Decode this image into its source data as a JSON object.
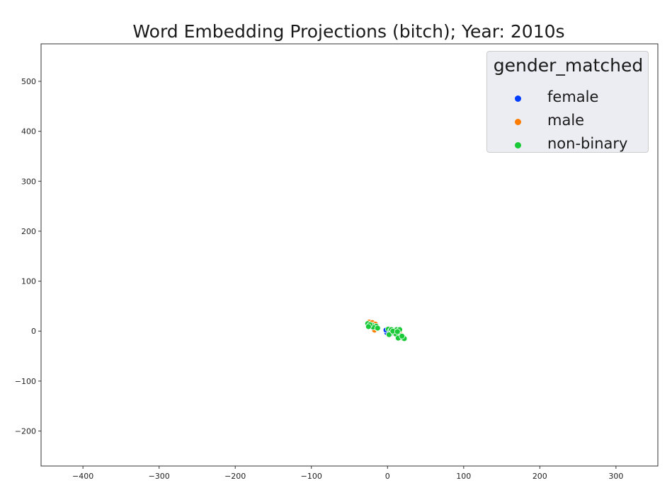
{
  "chart_data": {
    "type": "scatter",
    "title": "Word Embedding Projections (bitch); Year: 2010s",
    "xlabel": "",
    "ylabel": "",
    "xlim": [
      -455,
      355
    ],
    "ylim": [
      -270,
      575
    ],
    "xticks": [
      -400,
      -300,
      -200,
      -100,
      0,
      100,
      200,
      300
    ],
    "yticks": [
      -200,
      -100,
      0,
      100,
      200,
      300,
      400,
      500
    ],
    "xtick_labels": [
      "−400",
      "−300",
      "−200",
      "−100",
      "0",
      "100",
      "200",
      "300"
    ],
    "ytick_labels": [
      "−200",
      "−100",
      "0",
      "100",
      "200",
      "300",
      "400",
      "500"
    ],
    "grid": false,
    "legend": {
      "title": "gender_matched",
      "placement": "top-right",
      "entries": [
        {
          "label": "female",
          "color": "#023eff"
        },
        {
          "label": "male",
          "color": "#ff7c00"
        },
        {
          "label": "non-binary",
          "color": "#1ac938"
        }
      ]
    },
    "series": [
      {
        "name": "female",
        "color": "#023eff",
        "points": [
          [
            -1,
            -3
          ],
          [
            2,
            -1
          ],
          [
            4,
            -6
          ],
          [
            -2,
            2
          ]
        ]
      },
      {
        "name": "male",
        "color": "#ff7c00",
        "points": [
          [
            -24,
            18
          ],
          [
            -20,
            17
          ],
          [
            -16,
            14
          ],
          [
            -18,
            10
          ],
          [
            -14,
            8
          ],
          [
            -22,
            12
          ],
          [
            -17,
            2
          ],
          [
            -13,
            5
          ],
          [
            8,
            3
          ],
          [
            12,
            1
          ],
          [
            16,
            -4
          ],
          [
            18,
            -9
          ],
          [
            6,
            -1
          ],
          [
            14,
            -12
          ],
          [
            3,
            4
          ]
        ]
      },
      {
        "name": "non-binary",
        "color": "#1ac938",
        "points": [
          [
            -26,
            15
          ],
          [
            -24,
            10
          ],
          [
            -20,
            12
          ],
          [
            -15,
            10
          ],
          [
            -19,
            8
          ],
          [
            -23,
            13
          ],
          [
            -25,
            9
          ],
          [
            -13,
            6
          ],
          [
            1,
            4
          ],
          [
            4,
            1
          ],
          [
            6,
            -3
          ],
          [
            8,
            2
          ],
          [
            10,
            -2
          ],
          [
            12,
            3
          ],
          [
            15,
            -8
          ],
          [
            17,
            -12
          ],
          [
            20,
            -14
          ],
          [
            22,
            -15
          ],
          [
            16,
            3
          ],
          [
            2,
            -7
          ],
          [
            5,
            3
          ],
          [
            9,
            -4
          ],
          [
            11,
            -6
          ],
          [
            14,
            -14
          ],
          [
            19,
            -10
          ],
          [
            7,
            0
          ],
          [
            13,
            -1
          ]
        ]
      }
    ]
  }
}
